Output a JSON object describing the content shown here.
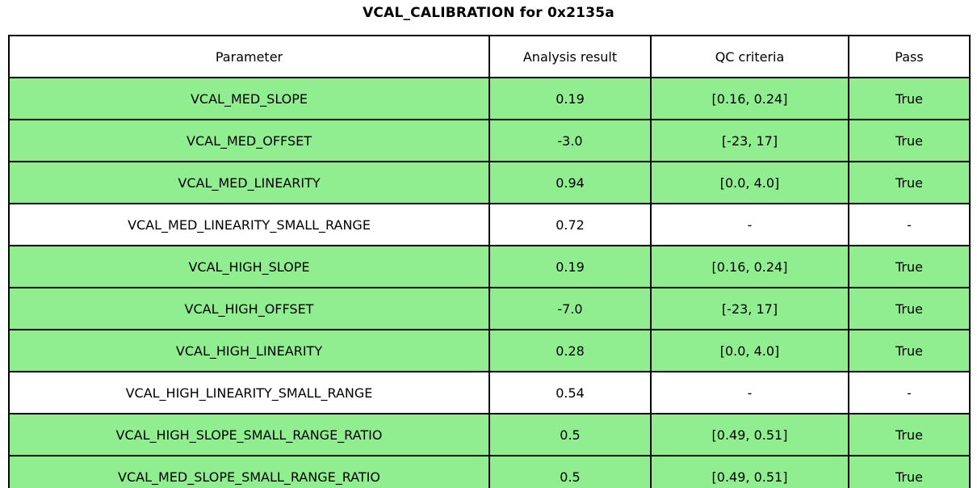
{
  "chart_data": {
    "type": "table",
    "title": "VCAL_CALIBRATION for 0x2135a",
    "columns": [
      "Parameter",
      "Analysis result",
      "QC criteria",
      "Pass"
    ],
    "rows": [
      {
        "cells": [
          "VCAL_MED_SLOPE",
          "0.19",
          "[0.16, 0.24]",
          "True"
        ],
        "pass_highlight": true
      },
      {
        "cells": [
          "VCAL_MED_OFFSET",
          "-3.0",
          "[-23, 17]",
          "True"
        ],
        "pass_highlight": true
      },
      {
        "cells": [
          "VCAL_MED_LINEARITY",
          "0.94",
          "[0.0, 4.0]",
          "True"
        ],
        "pass_highlight": true
      },
      {
        "cells": [
          "VCAL_MED_LINEARITY_SMALL_RANGE",
          "0.72",
          "-",
          "-"
        ],
        "pass_highlight": false
      },
      {
        "cells": [
          "VCAL_HIGH_SLOPE",
          "0.19",
          "[0.16, 0.24]",
          "True"
        ],
        "pass_highlight": true
      },
      {
        "cells": [
          "VCAL_HIGH_OFFSET",
          "-7.0",
          "[-23, 17]",
          "True"
        ],
        "pass_highlight": true
      },
      {
        "cells": [
          "VCAL_HIGH_LINEARITY",
          "0.28",
          "[0.0, 4.0]",
          "True"
        ],
        "pass_highlight": true
      },
      {
        "cells": [
          "VCAL_HIGH_LINEARITY_SMALL_RANGE",
          "0.54",
          "-",
          "-"
        ],
        "pass_highlight": false
      },
      {
        "cells": [
          "VCAL_HIGH_SLOPE_SMALL_RANGE_RATIO",
          "0.5",
          "[0.49, 0.51]",
          "True"
        ],
        "pass_highlight": true
      },
      {
        "cells": [
          "VCAL_MED_SLOPE_SMALL_RANGE_RATIO",
          "0.5",
          "[0.49, 0.51]",
          "True"
        ],
        "pass_highlight": true
      }
    ],
    "layout": {
      "legend": "none",
      "grid": "cell-borders"
    },
    "colors": {
      "row_pass": "#90ee90",
      "row_neutral": "#ffffff",
      "border": "#000000",
      "text": "#000000",
      "background": "#ffffff"
    }
  }
}
